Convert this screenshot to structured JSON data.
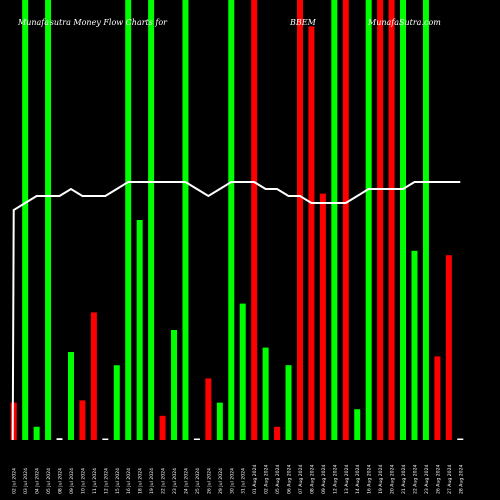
{
  "header": {
    "left": "Munafa sutra  Money Flow  Charts for",
    "middle": "BBEM",
    "right": "MunafaSutra.com"
  },
  "colors": {
    "background": "#000000",
    "up": "#00ff00",
    "down": "#ff0000",
    "line": "#ffffff"
  },
  "chart_data": {
    "type": "bar",
    "title": "",
    "categories": [
      "02 Jul 2024",
      "03 Jul 2024",
      "04 Jul 2024",
      "05 Jul 2024",
      "08 Jul 2024",
      "09 Jul 2024",
      "10 Jul 2024",
      "11 Jul 2024",
      "12 Jul 2024",
      "15 Jul 2024",
      "16 Jul 2024",
      "18 Jul 2024",
      "19 Jul 2024",
      "22 Jul 2024",
      "23 Jul 2024",
      "24 Jul 2024",
      "25 Jul 2024",
      "26 Jul 2024",
      "29 Jul 2024",
      "30 Jul 2024",
      "31 Jul 2024",
      "01 Aug 2024",
      "02 Aug 2024",
      "05 Aug 2024",
      "06 Aug 2024",
      "07 Aug 2024",
      "08 Aug 2024",
      "09 Aug 2024",
      "12 Aug 2024",
      "13 Aug 2024",
      "14 Aug 2024",
      "16 Aug 2024",
      "19 Aug 2024",
      "20 Aug 2024",
      "21 Aug 2024",
      "22 Aug 2024",
      "23 Aug 2024",
      "26 Aug 2024",
      "27 Aug 2024",
      "28 Aug 2024"
    ],
    "bar_colors": [
      "red",
      "green",
      "green",
      "green",
      "green",
      "green",
      "red",
      "red",
      "green",
      "green",
      "green",
      "green",
      "green",
      "red",
      "green",
      "green",
      "green",
      "red",
      "green",
      "green",
      "green",
      "red",
      "green",
      "red",
      "green",
      "red",
      "red",
      "red",
      "green",
      "red",
      "green",
      "green",
      "red",
      "red",
      "green",
      "green",
      "green",
      "red",
      "red",
      "green"
    ],
    "values": [
      8.5,
      100,
      3,
      100,
      0.4,
      20,
      9,
      29,
      0.3,
      17,
      100,
      50,
      100,
      5.5,
      25,
      100,
      0.3,
      14,
      8.5,
      100,
      31,
      100,
      21,
      3,
      17,
      100,
      94,
      56,
      100,
      100,
      7,
      100,
      100,
      100,
      100,
      43,
      100,
      19,
      42,
      0
    ],
    "line_values": [
      60,
      61,
      62,
      62,
      62,
      63,
      62,
      62,
      62,
      63,
      64,
      64,
      64,
      64,
      64,
      64,
      63,
      62,
      63,
      64,
      64,
      64,
      63,
      63,
      62,
      62,
      61,
      61,
      61,
      61,
      62,
      63,
      63,
      63,
      63,
      64,
      64,
      64,
      64,
      64
    ],
    "line_values_note": "",
    "tick_labels": [
      "02 Jul 2024",
      "03 Jul 2024",
      "04 Jul 2024",
      "05 Jul 2024",
      "08 Jul 2024",
      "09 Jul 2024",
      "10 Jul 2024",
      "11 Jul 2024",
      "12 Jul 2024",
      "15 Jul 2024",
      "16 Jul 2024",
      "18 Jul 2024",
      "19 Jul 2024",
      "22 Jul 2024",
      "23 Jul 2024",
      "24 Jul 2024",
      "25 Jul 2024",
      "26 Jul 2024",
      "29 Jul 2024",
      "30 Jul 2024",
      "31 Jul 2024",
      "01 Aug 2024",
      "02 Aug 2024",
      "05 Aug 2024",
      "06 Aug 2024",
      "07 Aug 2024",
      "08 Aug 2024",
      "09 Aug 2024",
      "12 Aug 2024",
      "13 Aug 2024",
      "14 Aug 2024",
      "16 Aug 2024",
      "19 Aug 2024",
      "20 Aug 2024",
      "21 Aug 2024",
      "22 Aug 2024",
      "23 Aug 2024",
      "26 Aug 2024",
      "27 Aug 2024",
      "28 Aug 2024"
    ],
    "xlabel": "",
    "ylabel": "",
    "ylim": [
      0,
      100
    ],
    "grid": false
  }
}
